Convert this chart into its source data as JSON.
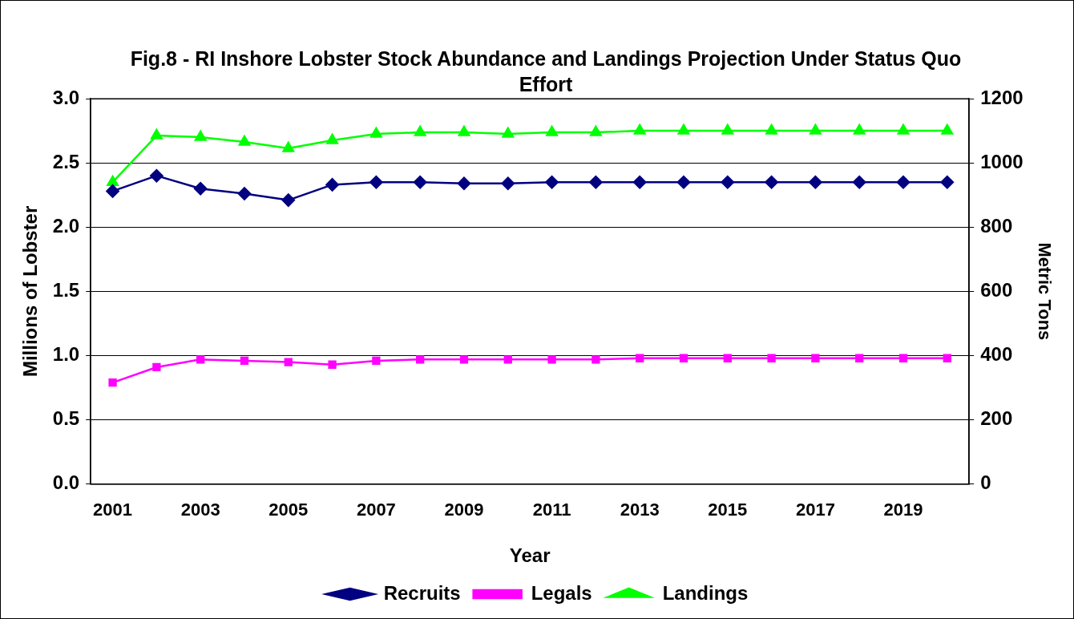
{
  "chart_data": {
    "type": "line",
    "title": "Fig.8 - RI Inshore Lobster Stock Abundance and Landings Projection Under Status Quo Effort",
    "xlabel": "Year",
    "ylabel": "Millions of Lobster",
    "y2label": "Metric Tons",
    "categories": [
      "2001",
      null,
      "2003",
      null,
      "2005",
      null,
      "2007",
      null,
      "2009",
      null,
      "2011",
      null,
      "2013",
      null,
      "2015",
      null,
      "2017",
      null,
      "2019",
      null
    ],
    "series": [
      {
        "name": "Recruits",
        "color": "#000080",
        "marker": "diamond",
        "values": [
          2.28,
          2.4,
          2.3,
          2.26,
          2.21,
          2.33,
          2.35,
          2.35,
          2.34,
          2.34,
          2.35,
          2.35,
          2.35,
          2.35,
          2.35,
          2.35,
          2.35,
          2.35,
          2.35,
          2.35
        ]
      },
      {
        "name": "Legals",
        "color": "#ff00ff",
        "marker": "square",
        "values": [
          0.79,
          0.91,
          0.97,
          0.96,
          0.95,
          0.93,
          0.96,
          0.97,
          0.97,
          0.97,
          0.97,
          0.97,
          0.98,
          0.98,
          0.98,
          0.98,
          0.98,
          0.98,
          0.98,
          0.98
        ]
      },
      {
        "name": "Landings",
        "color": "#00ff00",
        "marker": "triangle",
        "axis": "y2",
        "values": [
          940,
          1085,
          1080,
          1065,
          1045,
          1070,
          1090,
          1095,
          1095,
          1090,
          1095,
          1095,
          1100,
          1100,
          1100,
          1100,
          1100,
          1100,
          1100,
          1100
        ]
      }
    ],
    "ylim": [
      0,
      3
    ],
    "yticks": [
      {
        "value": 0,
        "label": "0.0"
      },
      {
        "value": 0.5,
        "label": "0.5"
      },
      {
        "value": 1,
        "label": "1.0"
      },
      {
        "value": 1.5,
        "label": "1.5"
      },
      {
        "value": 2,
        "label": "2.0"
      },
      {
        "value": 2.5,
        "label": "2.5"
      },
      {
        "value": 3,
        "label": "3.0"
      }
    ],
    "y2lim": [
      0,
      1200
    ],
    "y2ticks": [
      0,
      200,
      400,
      600,
      800,
      1000,
      1200
    ],
    "grid": "y",
    "legend": "bottom",
    "line_style": "solid"
  }
}
